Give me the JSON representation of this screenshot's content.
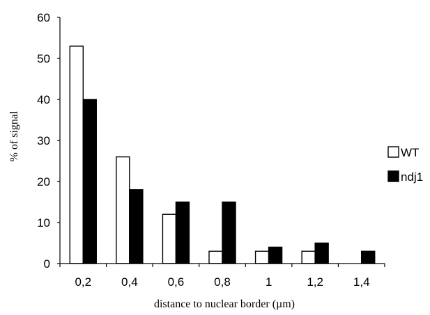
{
  "chart_data": {
    "type": "bar",
    "xlabel": "distance to nuclear border (µm)",
    "ylabel": "% of signal",
    "categories": [
      "0,2",
      "0,4",
      "0,6",
      "0,8",
      "1",
      "1,2",
      "1,4"
    ],
    "series": [
      {
        "name": "WT",
        "fill": "#ffffff",
        "values": [
          53,
          26,
          12,
          3,
          3,
          3,
          0
        ]
      },
      {
        "name": "ndj1",
        "fill": "#000000",
        "values": [
          40,
          18,
          15,
          15,
          4,
          5,
          3
        ]
      }
    ],
    "ylim": [
      0,
      60
    ],
    "yticks": [
      "0",
      "10",
      "20",
      "30",
      "40",
      "50",
      "60"
    ],
    "grid": false,
    "legend_position": "right"
  }
}
